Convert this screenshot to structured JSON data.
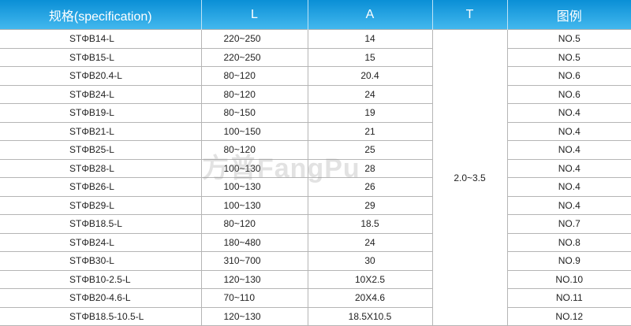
{
  "headers": [
    "规格(specification)",
    "L",
    "A",
    "T",
    "图例"
  ],
  "t_value": "2.0~3.5",
  "watermark": "方普FangPu",
  "rows": [
    [
      "STΦB14-L",
      "220~250",
      "14",
      "NO.5"
    ],
    [
      "STΦB15-L",
      "220~250",
      "15",
      "NO.5"
    ],
    [
      "STΦB20.4-L",
      "80~120",
      "20.4",
      "NO.6"
    ],
    [
      "STΦB24-L",
      "80~120",
      "24",
      "NO.6"
    ],
    [
      "STΦB19-L",
      "80~150",
      "19",
      "NO.4"
    ],
    [
      "STΦB21-L",
      "100~150",
      "21",
      "NO.4"
    ],
    [
      "STΦB25-L",
      "80~120",
      "25",
      "NO.4"
    ],
    [
      "STΦB28-L",
      "100~130",
      "28",
      "NO.4"
    ],
    [
      "STΦB26-L",
      "100~130",
      "26",
      "NO.4"
    ],
    [
      "STΦB29-L",
      "100~130",
      "29",
      "NO.4"
    ],
    [
      "STΦB18.5-L",
      "80~120",
      "18.5",
      "NO.7"
    ],
    [
      "STΦB24-L",
      "180~480",
      "24",
      "NO.8"
    ],
    [
      "STΦB30-L",
      "310~700",
      "30",
      "NO.9"
    ],
    [
      "STΦB10-2.5-L",
      "120~130",
      "10X2.5",
      "NO.10"
    ],
    [
      "STΦB20-4.6-L",
      "70~110",
      "20X4.6",
      "NO.11"
    ],
    [
      "STΦB18.5-10.5-L",
      "120~130",
      "18.5X10.5",
      "NO.12"
    ]
  ]
}
